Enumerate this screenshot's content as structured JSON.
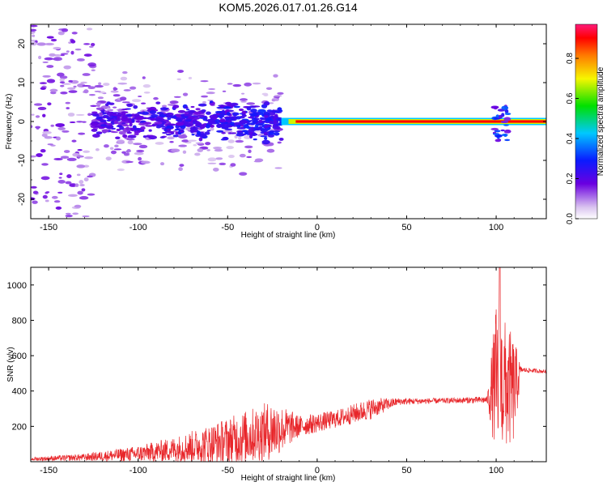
{
  "chart_data": [
    {
      "type": "heatmap",
      "title": "KOM5.2026.017.01.26.G14",
      "xlabel": "Height of straight line (km)",
      "ylabel": "Frequency (Hz)",
      "xlim": [
        -160,
        128
      ],
      "ylim": [
        -25,
        25
      ],
      "xticks": [
        -150,
        -100,
        -50,
        0,
        50,
        100
      ],
      "yticks": [
        -20,
        -10,
        0,
        10,
        20
      ],
      "colorbar": {
        "label": "Normalized spectral amplitude",
        "range": [
          0,
          0.97
        ],
        "ticks": [
          "0.0",
          "0.2",
          "0.4",
          "0.6",
          "0.8"
        ],
        "colormap": "rainbow (white-lavender, purple, blue, cyan, green, yellow, orange, red, magenta)"
      },
      "description_points": {
        "main_line": {
          "x_start": -20,
          "x_end": 128,
          "y": 0,
          "amplitude": 0.9
        },
        "noisy_band": {
          "x_start": -125,
          "x_end": -20,
          "y_spread": [
            -8,
            8
          ]
        },
        "sparse_noise": {
          "x_start": -160,
          "x_end": -125,
          "y_spread": [
            -25,
            25
          ]
        },
        "bump": {
          "x": 102,
          "y_spread": [
            -5,
            4
          ]
        }
      }
    },
    {
      "type": "line",
      "xlabel": "Height of straight line (km)",
      "ylabel": "SNR (v/v)",
      "xlim": [
        -160,
        128
      ],
      "ylim": [
        0,
        1100
      ],
      "xticks": [
        -150,
        -100,
        -50,
        0,
        50,
        100
      ],
      "yticks": [
        200,
        400,
        600,
        800,
        1000
      ],
      "color": "#e8262a",
      "envelope_points": [
        {
          "x": -160,
          "mean": 15,
          "amp": 10
        },
        {
          "x": -130,
          "mean": 25,
          "amp": 20
        },
        {
          "x": -100,
          "mean": 45,
          "amp": 45
        },
        {
          "x": -80,
          "mean": 70,
          "amp": 70
        },
        {
          "x": -60,
          "mean": 100,
          "amp": 110
        },
        {
          "x": -40,
          "mean": 140,
          "amp": 150
        },
        {
          "x": -25,
          "mean": 180,
          "amp": 170
        },
        {
          "x": -10,
          "mean": 200,
          "amp": 60
        },
        {
          "x": 10,
          "mean": 240,
          "amp": 50
        },
        {
          "x": 30,
          "mean": 300,
          "amp": 60
        },
        {
          "x": 45,
          "mean": 340,
          "amp": 20
        },
        {
          "x": 70,
          "mean": 345,
          "amp": 15
        },
        {
          "x": 95,
          "mean": 350,
          "amp": 20
        },
        {
          "x": 100,
          "mean": 450,
          "amp": 450
        },
        {
          "x": 110,
          "mean": 400,
          "amp": 300
        },
        {
          "x": 114,
          "mean": 520,
          "amp": 15
        },
        {
          "x": 128,
          "mean": 510,
          "amp": 10
        }
      ],
      "peak": {
        "x": 102,
        "y": 1100
      }
    }
  ]
}
